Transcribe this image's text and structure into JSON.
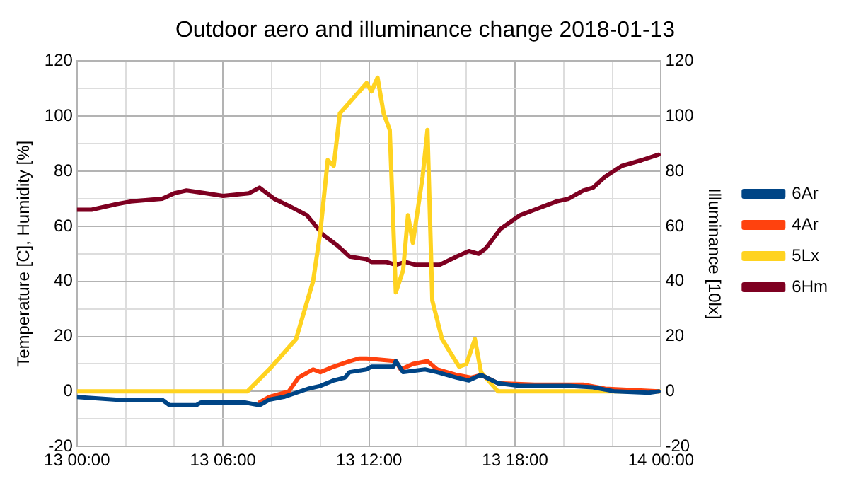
{
  "chart_data": {
    "type": "line",
    "title": "Outdoor aero and illuminance change 2018-01-13",
    "ylabel": "Temperature [C], Humidity [%]",
    "y2label": "Illuminance [10lx]",
    "xlim": [
      "2018-01-13T00:00",
      "2018-01-14T00:00"
    ],
    "xticks": [
      {
        "value": "2018-01-13T00:00",
        "label": "13 00:00"
      },
      {
        "value": "2018-01-13T02:00",
        "label": null
      },
      {
        "value": "2018-01-13T04:00",
        "label": null
      },
      {
        "value": "2018-01-13T06:00",
        "label": "13 06:00"
      },
      {
        "value": "2018-01-13T08:00",
        "label": null
      },
      {
        "value": "2018-01-13T10:00",
        "label": null
      },
      {
        "value": "2018-01-13T12:00",
        "label": "13 12:00"
      },
      {
        "value": "2018-01-13T14:00",
        "label": null
      },
      {
        "value": "2018-01-13T16:00",
        "label": null
      },
      {
        "value": "2018-01-13T18:00",
        "label": "13 18:00"
      },
      {
        "value": "2018-01-13T20:00",
        "label": null
      },
      {
        "value": "2018-01-13T22:00",
        "label": null
      },
      {
        "value": "2018-01-14T00:00",
        "label": "14 00:00"
      }
    ],
    "ylim": [
      -20,
      120
    ],
    "yticks": [
      -20,
      {
        "value": -10,
        "label": null
      },
      0,
      {
        "value": 10,
        "label": null
      },
      20,
      {
        "value": 30,
        "label": null
      },
      40,
      {
        "value": 50,
        "label": null
      },
      60,
      {
        "value": 70,
        "label": null
      },
      80,
      {
        "value": 90,
        "label": null
      },
      100,
      {
        "value": 110,
        "label": null
      },
      120
    ],
    "y2lim": [
      -20,
      120
    ],
    "y2ticks": [
      -20,
      0,
      20,
      40,
      60,
      80,
      100,
      120
    ],
    "grid": true,
    "legend": "right",
    "marker": "none",
    "line_style": "solid",
    "series": [
      {
        "name": "6Ar",
        "color": "#004586",
        "x": [
          "2018-01-13T00:00",
          "2018-01-13T01:36",
          "2018-01-13T03:30",
          "2018-01-13T03:48",
          "2018-01-13T04:54",
          "2018-01-13T05:06",
          "2018-01-13T06:54",
          "2018-01-13T07:30",
          "2018-01-13T07:54",
          "2018-01-13T08:30",
          "2018-01-13T09:30",
          "2018-01-13T10:00",
          "2018-01-13T10:33",
          "2018-01-13T11:00",
          "2018-01-13T11:12",
          "2018-01-13T11:54",
          "2018-01-13T12:06",
          "2018-01-13T13:00",
          "2018-01-13T13:06",
          "2018-01-13T13:24",
          "2018-01-13T14:18",
          "2018-01-13T14:48",
          "2018-01-13T15:36",
          "2018-01-13T16:06",
          "2018-01-13T16:36",
          "2018-01-13T17:18",
          "2018-01-13T18:12",
          "2018-01-13T20:12",
          "2018-01-13T21:12",
          "2018-01-13T22:06",
          "2018-01-13T23:30",
          "2018-01-13T23:54"
        ],
        "values": [
          -2,
          -3,
          -3,
          -5,
          -5,
          -4,
          -4,
          -5,
          -3,
          -2,
          1,
          2,
          4,
          5,
          7,
          8,
          9,
          9,
          11,
          7,
          8,
          7,
          5,
          4,
          6,
          3,
          2,
          2,
          1.5,
          0,
          -0.5,
          0
        ]
      },
      {
        "name": "4Ar",
        "color": "#ff420e",
        "x": [
          "2018-01-13T07:30",
          "2018-01-13T07:54",
          "2018-01-13T08:42",
          "2018-01-13T09:06",
          "2018-01-13T09:42",
          "2018-01-13T10:00",
          "2018-01-13T10:33",
          "2018-01-13T11:12",
          "2018-01-13T11:36",
          "2018-01-13T11:54",
          "2018-01-13T13:06",
          "2018-01-13T13:18",
          "2018-01-13T13:48",
          "2018-01-13T14:24",
          "2018-01-13T14:48",
          "2018-01-13T15:36",
          "2018-01-13T16:12",
          "2018-01-13T16:36",
          "2018-01-13T17:18",
          "2018-01-13T18:48",
          "2018-01-13T20:48",
          "2018-01-13T21:42",
          "2018-01-13T23:54"
        ],
        "values": [
          -4,
          -2,
          0,
          5,
          8,
          7,
          9,
          11,
          12,
          12,
          11,
          8,
          10,
          11,
          8,
          6,
          5,
          6,
          3,
          2.5,
          2.5,
          1,
          0
        ]
      },
      {
        "name": "5Lx",
        "color": "#ffd320",
        "axis": "y2",
        "x": [
          "2018-01-13T00:00",
          "2018-01-13T07:00",
          "2018-01-13T07:54",
          "2018-01-13T09:00",
          "2018-01-13T09:42",
          "2018-01-13T10:00",
          "2018-01-13T10:18",
          "2018-01-13T10:33",
          "2018-01-13T10:48",
          "2018-01-13T11:18",
          "2018-01-13T11:54",
          "2018-01-13T12:06",
          "2018-01-13T12:21",
          "2018-01-13T12:36",
          "2018-01-13T12:51",
          "2018-01-13T13:06",
          "2018-01-13T13:24",
          "2018-01-13T13:36",
          "2018-01-13T13:48",
          "2018-01-13T14:12",
          "2018-01-13T14:24",
          "2018-01-13T14:36",
          "2018-01-13T15:00",
          "2018-01-13T15:42",
          "2018-01-13T16:00",
          "2018-01-13T16:21",
          "2018-01-13T16:36",
          "2018-01-13T17:18",
          "2018-01-14T00:00"
        ],
        "values": [
          0,
          0,
          8,
          19,
          40,
          58,
          84,
          82,
          101,
          106,
          112,
          109,
          114,
          101,
          95,
          36,
          44,
          64,
          54,
          78,
          95,
          33,
          19,
          9,
          10,
          19,
          7,
          0,
          0
        ]
      },
      {
        "name": "6Hm",
        "color": "#7e0021",
        "x": [
          "2018-01-13T00:00",
          "2018-01-13T00:36",
          "2018-01-13T01:36",
          "2018-01-13T02:12",
          "2018-01-13T03:30",
          "2018-01-13T04:00",
          "2018-01-13T04:30",
          "2018-01-13T05:18",
          "2018-01-13T06:00",
          "2018-01-13T07:04",
          "2018-01-13T07:30",
          "2018-01-13T08:06",
          "2018-01-13T08:48",
          "2018-01-13T09:27",
          "2018-01-13T10:06",
          "2018-01-13T10:42",
          "2018-01-13T11:12",
          "2018-01-13T11:54",
          "2018-01-13T12:06",
          "2018-01-13T12:42",
          "2018-01-13T13:06",
          "2018-01-13T13:30",
          "2018-01-13T13:54",
          "2018-01-13T14:54",
          "2018-01-13T15:36",
          "2018-01-13T16:06",
          "2018-01-13T16:30",
          "2018-01-13T16:48",
          "2018-01-13T17:24",
          "2018-01-13T18:12",
          "2018-01-13T19:06",
          "2018-01-13T19:42",
          "2018-01-13T20:12",
          "2018-01-13T20:48",
          "2018-01-13T21:12",
          "2018-01-13T21:42",
          "2018-01-13T22:24",
          "2018-01-13T23:12",
          "2018-01-13T23:54"
        ],
        "values": [
          66,
          66,
          68,
          69,
          70,
          72,
          73,
          72,
          71,
          72,
          74,
          70,
          67,
          64,
          57,
          53,
          49,
          48,
          47,
          47,
          46,
          47,
          46,
          46,
          49,
          51,
          50,
          52,
          59,
          64,
          67,
          69,
          70,
          73,
          74,
          78,
          82,
          84,
          86
        ]
      }
    ]
  }
}
